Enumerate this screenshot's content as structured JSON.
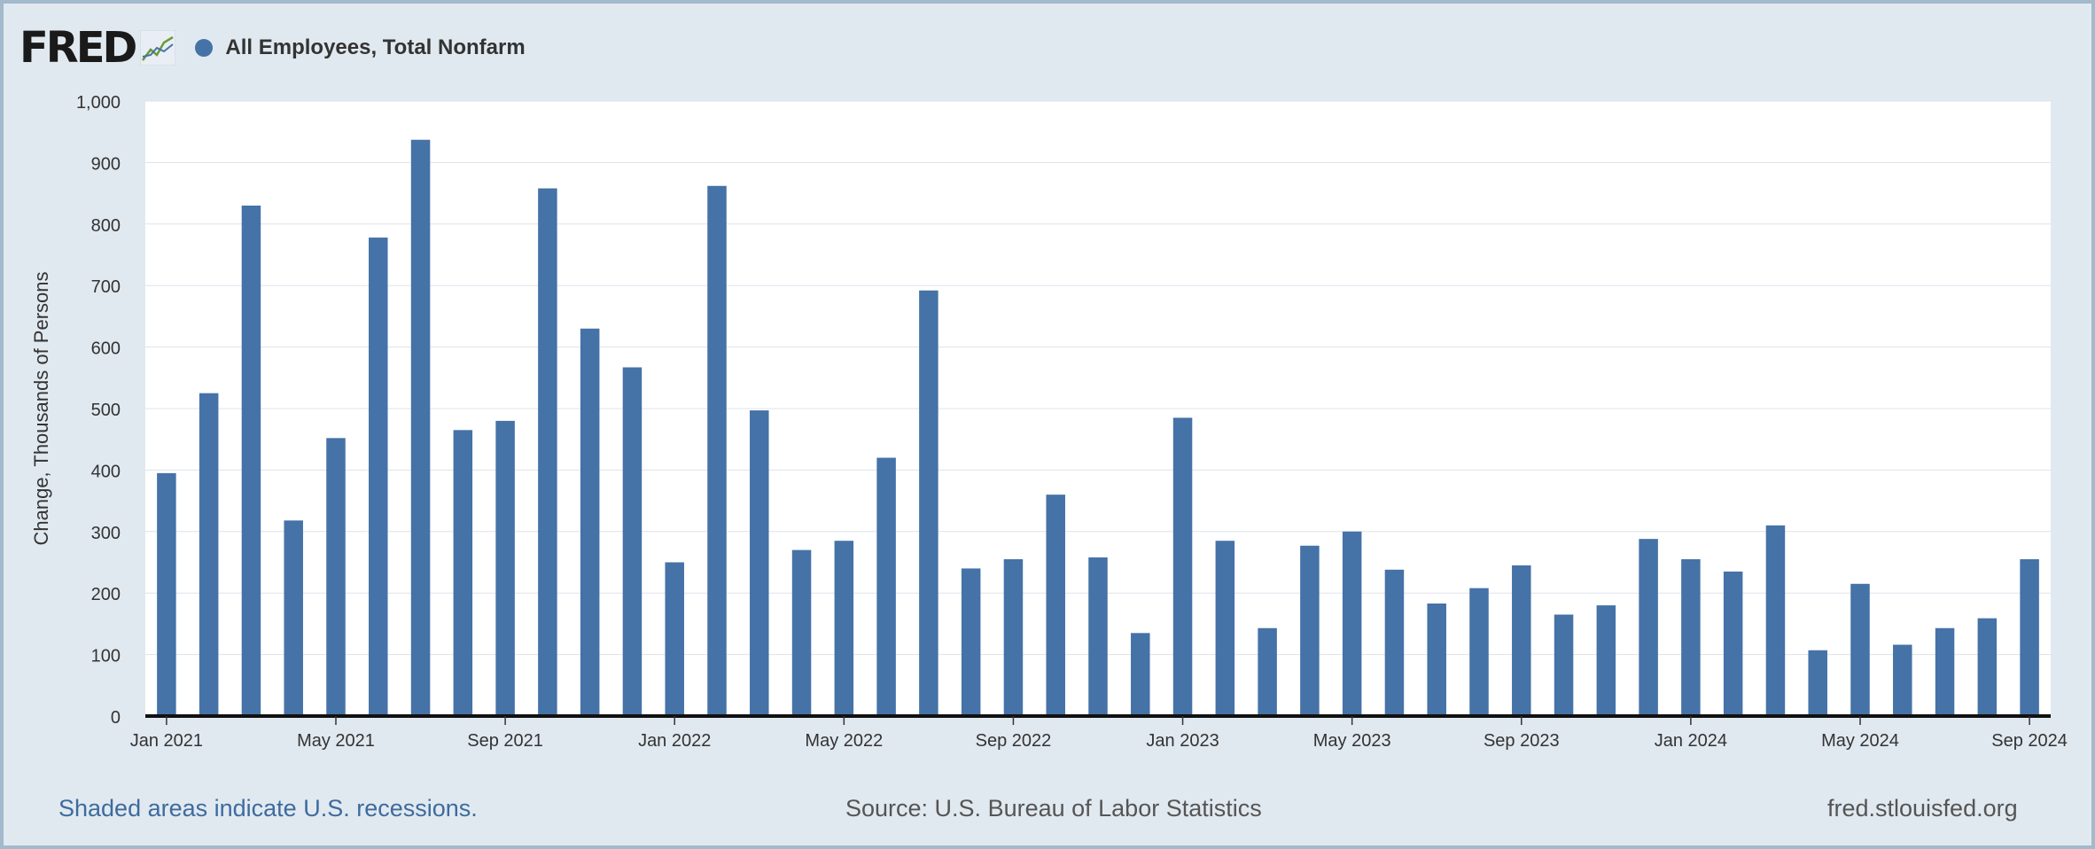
{
  "brand": {
    "name": "FRED",
    "graph_icon": "line-chart-icon"
  },
  "colors": {
    "bar": "#4572a7",
    "plot_bg": "#ffffff",
    "page_bg": "#e1e9f0",
    "grid": "#dde3ea"
  },
  "chart_data": {
    "type": "bar",
    "title": "",
    "xlabel": "",
    "ylabel": "Change, Thousands of Persons",
    "ylim": [
      0,
      1000
    ],
    "yticks": [
      0,
      100,
      200,
      300,
      400,
      500,
      600,
      700,
      800,
      900,
      "1,000"
    ],
    "xticks": [
      "Jan 2021",
      "May 2021",
      "Sep 2021",
      "Jan 2022",
      "May 2022",
      "Sep 2022",
      "Jan 2023",
      "May 2023",
      "Sep 2023",
      "Jan 2024",
      "May 2024",
      "Sep 2024"
    ],
    "grid": true,
    "legend_position": "top-left",
    "series": [
      {
        "name": "All Employees, Total Nonfarm",
        "x": [
          "2021-01",
          "2021-02",
          "2021-03",
          "2021-04",
          "2021-05",
          "2021-06",
          "2021-07",
          "2021-08",
          "2021-09",
          "2021-10",
          "2021-11",
          "2021-12",
          "2022-01",
          "2022-02",
          "2022-03",
          "2022-04",
          "2022-05",
          "2022-06",
          "2022-07",
          "2022-08",
          "2022-09",
          "2022-10",
          "2022-11",
          "2022-12",
          "2023-01",
          "2023-02",
          "2023-03",
          "2023-04",
          "2023-05",
          "2023-06",
          "2023-07",
          "2023-08",
          "2023-09",
          "2023-10",
          "2023-11",
          "2023-12",
          "2024-01",
          "2024-02",
          "2024-03",
          "2024-04",
          "2024-05",
          "2024-06",
          "2024-07",
          "2024-08",
          "2024-09"
        ],
        "values": [
          395,
          525,
          830,
          318,
          452,
          778,
          937,
          465,
          480,
          858,
          630,
          567,
          250,
          862,
          497,
          270,
          285,
          420,
          692,
          240,
          255,
          360,
          258,
          135,
          485,
          285,
          143,
          277,
          300,
          238,
          183,
          208,
          245,
          165,
          180,
          288,
          255,
          235,
          310,
          107,
          215,
          116,
          143,
          159,
          255
        ]
      }
    ]
  },
  "footer": {
    "recession_note": "Shaded areas indicate U.S. recessions.",
    "source": "Source: U.S. Bureau of Labor Statistics",
    "site": "fred.stlouisfed.org"
  }
}
